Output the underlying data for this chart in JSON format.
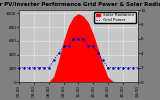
{
  "title": "Solar PV/Inverter Performance Grid Power & Solar Radiation",
  "bg_color": "#808080",
  "plot_bg_color": "#c8c8c8",
  "grid_color": "#ffffff",
  "solar_color": "#ff0000",
  "grid_power_color": "#0000cc",
  "legend_solar_label": "Solar Radiation",
  "legend_grid_label": "Grid Power",
  "x_hours": [
    0,
    1,
    2,
    3,
    4,
    5,
    6,
    7,
    8,
    9,
    10,
    11,
    12,
    13,
    14,
    15,
    16,
    17,
    18,
    19,
    20,
    21,
    22,
    23,
    24
  ],
  "solar_values": [
    0,
    0,
    0,
    0,
    0,
    0,
    5,
    80,
    320,
    600,
    820,
    950,
    1000,
    960,
    870,
    700,
    480,
    250,
    70,
    10,
    0,
    0,
    0,
    0,
    0
  ],
  "grid_power_values": [
    2,
    2,
    2,
    2,
    2,
    2,
    2,
    3,
    4,
    5,
    5,
    6,
    6,
    6,
    5,
    5,
    4,
    3,
    2,
    2,
    2,
    2,
    2,
    2,
    2
  ],
  "ylim_solar": [
    0,
    1050
  ],
  "ylim_grid": [
    0,
    10
  ],
  "ylabel_left": "Solar Rad",
  "ylabel_right": "Grid Power",
  "title_fontsize": 4,
  "label_fontsize": 3,
  "tick_fontsize": 3
}
